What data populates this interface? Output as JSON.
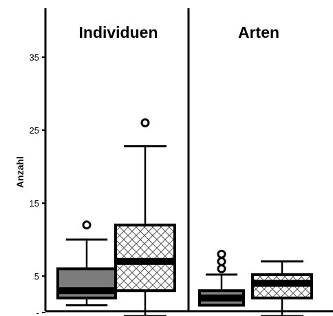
{
  "chart_data": {
    "type": "boxplot",
    "ylabel": "Anzahl",
    "ylim": [
      0,
      35
    ],
    "yticks": [
      {
        "value": 0,
        "label": "-"
      },
      {
        "value": 5,
        "label": "5"
      },
      {
        "value": 15,
        "label": "15"
      },
      {
        "value": 25,
        "label": "25"
      },
      {
        "value": 35,
        "label": "35"
      }
    ],
    "panels": [
      {
        "title": "Individuen",
        "boxes": [
          {
            "style": "gray",
            "whisker_low": 1,
            "q1": 2,
            "median": 3,
            "q3": 6,
            "whisker_high": 10,
            "outliers": [
              12
            ]
          },
          {
            "style": "crosshatch",
            "whisker_low": -0.5,
            "q1": 3,
            "median": 7,
            "q3": 12,
            "whisker_high": 22.8,
            "outliers": [
              26
            ]
          }
        ]
      },
      {
        "title": "Arten",
        "boxes": [
          {
            "style": "gray",
            "whisker_low": 1,
            "q1": 1,
            "median": 2,
            "q3": 3,
            "whisker_high": 5.2,
            "outliers": [
              6,
              7,
              8
            ]
          },
          {
            "style": "crosshatch",
            "whisker_low": -0.5,
            "q1": 2,
            "median": 4,
            "q3": 5.2,
            "whisker_high": 7,
            "outliers": []
          }
        ]
      }
    ],
    "grid": false,
    "legend": "none"
  }
}
